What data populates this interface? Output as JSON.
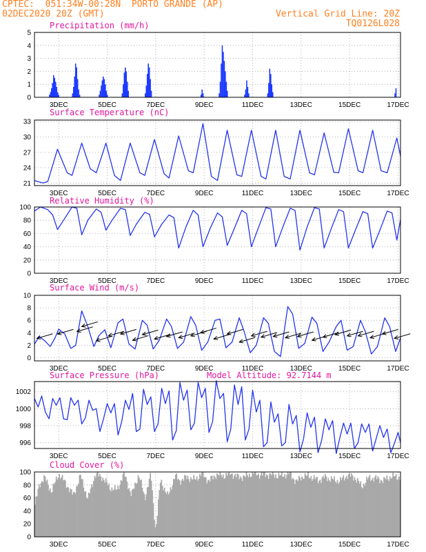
{
  "header": {
    "station_line": "CPTEC:  051:34W-00:28N  PORTO GRANDE (AP)",
    "date_line": "02DEC2020 20Z (GMT)",
    "grid_note": "Vertical Grid Line: 20Z",
    "code": "TQ0126L028"
  },
  "colors": {
    "line": "#2233ee",
    "bars": "#1d3bff",
    "cloud": "#a8a8a8",
    "title": "#e0169e",
    "header": "#ff7f1e"
  },
  "chart_data": [
    {
      "id": "precip",
      "type": "bar",
      "title": "Precipitation (mm/h)",
      "ylim": [
        0,
        5
      ],
      "yticks": [
        0,
        1,
        2,
        3,
        4,
        5
      ],
      "x_unit": "days since 02DEC2020 20Z",
      "xlim": [
        0,
        15.1
      ],
      "xticks": [
        "3DEC",
        "5DEC",
        "7DEC",
        "9DEC",
        "11DEC",
        "13DEC",
        "15DEC",
        "17DEC"
      ],
      "events": [
        {
          "x": 0.6,
          "values": [
            0.2,
            0.4,
            0.7,
            1.1,
            1.7,
            1.5,
            1.2,
            0.8,
            0.4,
            0.2
          ]
        },
        {
          "x": 1.55,
          "values": [
            0.3,
            0.8,
            1.6,
            2.6,
            2.3,
            1.4,
            0.6,
            0.2
          ]
        },
        {
          "x": 2.65,
          "values": [
            0.2,
            0.5,
            0.9,
            1.3,
            1.6,
            1.4,
            1.0,
            0.5,
            0.2
          ]
        },
        {
          "x": 3.6,
          "values": [
            0.3,
            1.0,
            1.9,
            2.3,
            2.0,
            1.2,
            0.5
          ]
        },
        {
          "x": 4.55,
          "values": [
            0.3,
            0.9,
            1.8,
            2.6,
            2.3,
            1.4,
            0.5
          ]
        },
        {
          "x": 6.85,
          "values": [
            0.2,
            0.6,
            0.3
          ]
        },
        {
          "x": 7.6,
          "values": [
            0.3,
            1.2,
            2.6,
            4.0,
            3.5,
            2.8,
            2.0,
            1.2,
            0.5
          ]
        },
        {
          "x": 8.65,
          "values": [
            0.2,
            0.6,
            1.3,
            0.8,
            0.3
          ]
        },
        {
          "x": 9.6,
          "values": [
            0.3,
            1.1,
            2.2,
            1.8,
            1.0,
            0.4
          ]
        },
        {
          "x": 14.85,
          "values": [
            0.3,
            0.7
          ]
        }
      ]
    },
    {
      "id": "temp",
      "type": "line",
      "title": "Surface Temperature (nC)",
      "ylim": [
        20.5,
        33.3
      ],
      "yticks": [
        21,
        24,
        27,
        30,
        33
      ],
      "xlim": [
        0,
        15.1
      ],
      "xticks": [
        "3DEC",
        "5DEC",
        "7DEC",
        "9DEC",
        "11DEC",
        "13DEC",
        "15DEC",
        "17DEC"
      ],
      "x": [
        0,
        0.35,
        0.55,
        0.95,
        1.35,
        1.55,
        1.95,
        2.3,
        2.55,
        2.95,
        3.3,
        3.55,
        3.95,
        4.35,
        4.55,
        4.95,
        5.35,
        5.55,
        5.95,
        6.35,
        6.55,
        6.95,
        7.3,
        7.55,
        7.95,
        8.35,
        8.55,
        8.95,
        9.35,
        9.55,
        9.95,
        10.3,
        10.55,
        10.95,
        11.35,
        11.55,
        11.95,
        12.35,
        12.55,
        12.95,
        13.35,
        13.55,
        13.95,
        14.3,
        14.55,
        14.95,
        15.1
      ],
      "y": [
        21.5,
        21.0,
        21.3,
        27.6,
        23.0,
        22.5,
        28.8,
        23.8,
        23.0,
        28.8,
        22.5,
        21.5,
        28.8,
        23.0,
        22.5,
        29.5,
        22.8,
        22.0,
        30.2,
        23.4,
        23.0,
        32.6,
        22.3,
        21.5,
        31.3,
        22.6,
        22.3,
        31.3,
        22.3,
        21.8,
        31.3,
        22.3,
        21.8,
        31.3,
        23.0,
        22.6,
        30.8,
        23.1,
        23.0,
        31.6,
        23.4,
        23.0,
        31.3,
        23.4,
        23.0,
        29.8,
        26.3
      ]
    },
    {
      "id": "rh",
      "type": "line",
      "title": "Relative Humidity (%)",
      "ylim": [
        0,
        100
      ],
      "yticks": [
        0,
        20,
        40,
        60,
        80,
        100
      ],
      "xlim": [
        0,
        15.1
      ],
      "xticks": [
        "3DEC",
        "5DEC",
        "7DEC",
        "9DEC",
        "11DEC",
        "13DEC",
        "15DEC",
        "17DEC"
      ],
      "x": [
        0,
        0.25,
        0.55,
        0.75,
        0.95,
        1.2,
        1.55,
        1.75,
        1.95,
        2.2,
        2.55,
        2.75,
        2.95,
        3.2,
        3.55,
        3.75,
        3.95,
        4.2,
        4.55,
        4.75,
        4.95,
        5.25,
        5.55,
        5.75,
        5.95,
        6.25,
        6.55,
        6.75,
        6.95,
        7.25,
        7.55,
        7.75,
        7.95,
        8.25,
        8.55,
        8.75,
        8.95,
        9.25,
        9.55,
        9.75,
        9.95,
        10.25,
        10.55,
        10.75,
        10.95,
        11.25,
        11.55,
        11.75,
        11.95,
        12.25,
        12.55,
        12.75,
        12.95,
        13.25,
        13.55,
        13.75,
        13.95,
        14.25,
        14.55,
        14.75,
        14.95,
        15.1
      ],
      "y": [
        94,
        100,
        96,
        88,
        66,
        80,
        100,
        98,
        58,
        80,
        97,
        92,
        65,
        80,
        98,
        96,
        57,
        74,
        92,
        89,
        55,
        74,
        88,
        84,
        38,
        70,
        95,
        88,
        40,
        68,
        91,
        85,
        42,
        68,
        95,
        90,
        40,
        70,
        99,
        97,
        40,
        70,
        98,
        95,
        35,
        70,
        99,
        97,
        38,
        68,
        96,
        93,
        38,
        66,
        93,
        90,
        38,
        65,
        94,
        91,
        50,
        81
      ]
    },
    {
      "id": "wind",
      "type": "line",
      "title": "Surface Wind (m/s)",
      "ylim": [
        -0.5,
        10
      ],
      "yticks": [
        0,
        2,
        4,
        6,
        8,
        10
      ],
      "xlim": [
        0,
        15.1
      ],
      "xticks": [
        "3DEC",
        "5DEC",
        "7DEC",
        "9DEC",
        "11DEC",
        "13DEC",
        "15DEC",
        "17DEC"
      ],
      "x": [
        0,
        0.2,
        0.4,
        0.65,
        0.85,
        1.0,
        1.25,
        1.5,
        1.7,
        1.95,
        2.2,
        2.45,
        2.65,
        2.9,
        3.15,
        3.45,
        3.65,
        3.9,
        4.15,
        4.45,
        4.65,
        4.9,
        5.15,
        5.45,
        5.65,
        5.9,
        6.15,
        6.45,
        6.65,
        6.9,
        7.15,
        7.45,
        7.65,
        7.9,
        8.15,
        8.45,
        8.65,
        8.9,
        9.15,
        9.45,
        9.65,
        9.9,
        10.15,
        10.45,
        10.65,
        10.9,
        11.15,
        11.45,
        11.65,
        11.9,
        12.15,
        12.45,
        12.65,
        12.9,
        13.15,
        13.45,
        13.65,
        13.9,
        14.15,
        14.45,
        14.65,
        14.9,
        15.1
      ],
      "y": [
        2.2,
        3.4,
        2.8,
        1.8,
        3.2,
        4.6,
        3.8,
        1.5,
        2.0,
        7.5,
        5.0,
        1.8,
        3.5,
        4.5,
        1.6,
        5.6,
        6.2,
        2.2,
        1.4,
        6.0,
        5.2,
        1.4,
        2.8,
        6.2,
        5.0,
        1.5,
        2.5,
        6.6,
        5.2,
        1.2,
        2.5,
        6.0,
        6.2,
        1.6,
        2.5,
        6.4,
        4.2,
        0.8,
        2.0,
        6.4,
        5.5,
        1.0,
        0.2,
        8.2,
        7.0,
        1.5,
        2.3,
        6.5,
        5.5,
        1.0,
        2.5,
        5.0,
        6.0,
        1.2,
        1.8,
        6.0,
        4.2,
        0.6,
        1.8,
        6.4,
        5.0,
        1.0,
        3.2
      ],
      "arrows": [
        [
          0.1,
          3.1
        ],
        [
          0.95,
          3.8
        ],
        [
          1.75,
          4.2
        ],
        [
          1.95,
          5.0
        ],
        [
          2.55,
          2.7
        ],
        [
          3.05,
          3.5
        ],
        [
          3.55,
          3.8
        ],
        [
          4.05,
          2.8
        ],
        [
          4.45,
          3.7
        ],
        [
          4.95,
          3.0
        ],
        [
          5.45,
          3.4
        ],
        [
          5.95,
          3.2
        ],
        [
          6.45,
          3.5
        ],
        [
          6.85,
          4.0
        ],
        [
          7.4,
          3.0
        ],
        [
          7.95,
          3.8
        ],
        [
          8.45,
          2.5
        ],
        [
          8.95,
          3.5
        ],
        [
          9.35,
          3.3
        ],
        [
          9.85,
          3.4
        ],
        [
          10.35,
          3.2
        ],
        [
          10.85,
          3.4
        ],
        [
          11.45,
          2.8
        ],
        [
          11.9,
          3.3
        ],
        [
          12.4,
          3.7
        ],
        [
          12.9,
          3.5
        ],
        [
          13.35,
          3.5
        ],
        [
          13.85,
          3.2
        ],
        [
          14.35,
          3.8
        ],
        [
          14.85,
          3.1
        ]
      ]
    },
    {
      "id": "pres",
      "type": "line",
      "title": "Surface Pressure (hPa)",
      "annotation": "Model Altitude: 92.7144 m",
      "ylim": [
        995.3,
        1003.2
      ],
      "yticks": [
        996,
        998,
        1000,
        1002
      ],
      "xlim": [
        0,
        15.1
      ],
      "xticks": [
        "3DEC",
        "5DEC",
        "7DEC",
        "9DEC",
        "11DEC",
        "13DEC",
        "15DEC",
        "17DEC"
      ],
      "x": [
        0,
        0.15,
        0.3,
        0.45,
        0.6,
        0.75,
        0.9,
        1.05,
        1.2,
        1.35,
        1.5,
        1.65,
        1.8,
        1.95,
        2.1,
        2.25,
        2.4,
        2.55,
        2.7,
        2.85,
        3.0,
        3.15,
        3.3,
        3.45,
        3.6,
        3.75,
        3.9,
        4.05,
        4.2,
        4.35,
        4.5,
        4.65,
        4.8,
        4.95,
        5.1,
        5.25,
        5.4,
        5.55,
        5.7,
        5.85,
        6.0,
        6.15,
        6.3,
        6.45,
        6.6,
        6.75,
        6.9,
        7.05,
        7.2,
        7.35,
        7.5,
        7.65,
        7.8,
        7.95,
        8.1,
        8.25,
        8.4,
        8.55,
        8.7,
        8.85,
        9.0,
        9.15,
        9.3,
        9.45,
        9.6,
        9.75,
        9.9,
        10.05,
        10.2,
        10.35,
        10.5,
        10.65,
        10.8,
        10.95,
        11.1,
        11.25,
        11.4,
        11.55,
        11.7,
        11.85,
        12.0,
        12.15,
        12.3,
        12.45,
        12.6,
        12.75,
        12.9,
        13.05,
        13.2,
        13.35,
        13.5,
        13.65,
        13.8,
        13.95,
        14.1,
        14.25,
        14.4,
        14.55,
        14.7,
        14.85,
        15.0,
        15.1
      ],
      "y": [
        1001.2,
        1000.2,
        1001.5,
        999.6,
        998.8,
        1001.2,
        1000.4,
        1001.3,
        998.8,
        998.7,
        1001.3,
        1000.4,
        1001.0,
        998.2,
        998.9,
        1001.0,
        999.8,
        1000.0,
        997.3,
        998.8,
        1000.6,
        999.5,
        1000.6,
        996.9,
        998.5,
        1001.0,
        999.9,
        1001.8,
        997.3,
        997.6,
        1002.3,
        1000.5,
        1001.4,
        997.3,
        998.2,
        1002.4,
        1000.6,
        1002.1,
        996.3,
        997.4,
        1003.1,
        1001.0,
        1002.2,
        997.5,
        998.3,
        1003.1,
        1001.3,
        1002.4,
        997.2,
        998.5,
        1003.3,
        1001.2,
        1001.8,
        996.1,
        997.6,
        1002.8,
        1000.5,
        1002.6,
        996.3,
        997.6,
        1002.2,
        999.6,
        1001.0,
        995.5,
        996.0,
        1000.8,
        998.4,
        999.4,
        995.6,
        996.0,
        1000.5,
        998.2,
        999.2,
        994.9,
        996.4,
        999.5,
        997.8,
        999.0,
        994.8,
        996.3,
        998.8,
        997.5,
        998.6,
        994.7,
        996.6,
        998.3,
        997.0,
        998.3,
        995.3,
        996.0,
        998.2,
        997.2,
        998.2,
        995.0,
        996.5,
        998.0,
        996.6,
        997.6,
        994.8,
        995.9,
        997.2,
        996.0
      ]
    },
    {
      "id": "cloud",
      "type": "bar",
      "title": "Cloud Cover (%)",
      "ylim": [
        0,
        100
      ],
      "yticks": [
        0,
        20,
        40,
        60,
        80,
        100
      ],
      "xlim": [
        0,
        15.1
      ],
      "xticks": [
        "3DEC",
        "5DEC",
        "7DEC",
        "9DEC",
        "11DEC",
        "13DEC",
        "15DEC",
        "17DEC"
      ],
      "profile_x": [
        0,
        0.2,
        0.4,
        0.7,
        1.0,
        1.3,
        1.6,
        1.9,
        2.2,
        2.5,
        2.8,
        3.1,
        3.4,
        3.7,
        4.0,
        4.3,
        4.55,
        4.8,
        5.0,
        5.2,
        5.5,
        5.8,
        6.0,
        6.3,
        6.6,
        6.9,
        7.2,
        7.5,
        7.8,
        8.1,
        8.4,
        8.7,
        9.0,
        9.3,
        9.6,
        9.9,
        10.2,
        10.5,
        10.8,
        11.1,
        11.4,
        11.7,
        12.0,
        12.3,
        12.6,
        12.9,
        13.2,
        13.5,
        13.8,
        14.1,
        14.4,
        14.7,
        15.1
      ],
      "profile_y": [
        46,
        80,
        92,
        70,
        97,
        82,
        64,
        94,
        58,
        96,
        92,
        76,
        72,
        98,
        64,
        96,
        60,
        96,
        8,
        88,
        62,
        94,
        86,
        92,
        88,
        97,
        86,
        96,
        94,
        98,
        92,
        93,
        98,
        96,
        96,
        95,
        94,
        98,
        85,
        94,
        93,
        87,
        92,
        88,
        86,
        95,
        92,
        78,
        91,
        90,
        87,
        93,
        92
      ]
    }
  ]
}
